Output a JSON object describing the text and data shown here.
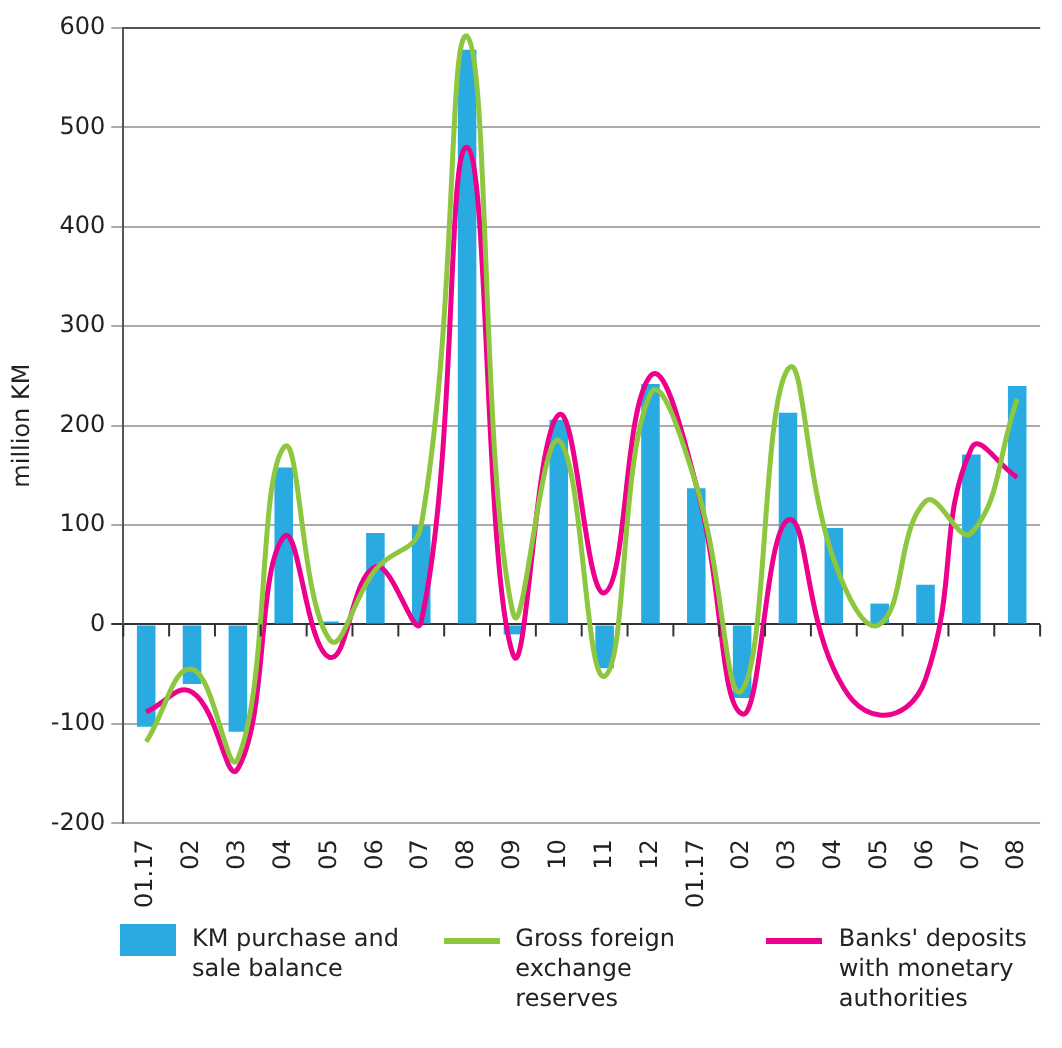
{
  "chart_data": {
    "type": "bar",
    "ylabel": "million KM",
    "categories": [
      "01.17",
      "02",
      "03",
      "04",
      "05",
      "06",
      "07",
      "08",
      "09",
      "10",
      "11",
      "12",
      "01.17",
      "02",
      "03",
      "04",
      "05",
      "06",
      "07",
      "08"
    ],
    "series": [
      {
        "name": "KM purchase and sale balance",
        "color": "#29abe2",
        "values": [
          -103,
          -60,
          -108,
          158,
          3,
          92,
          100,
          578,
          -10,
          206,
          -44,
          242,
          137,
          -74,
          213,
          97,
          21,
          40,
          171,
          240
        ]
      },
      {
        "name": "Gross foreign exchange reserves",
        "type": "line",
        "color": "#8dc63f",
        "values": [
          -118,
          -45,
          -135,
          178,
          -15,
          55,
          100,
          592,
          12,
          185,
          -52,
          232,
          140,
          -66,
          257,
          65,
          0,
          124,
          92,
          227
        ]
      },
      {
        "name": "Banks' deposits with monetary authorities",
        "type": "line",
        "color": "#ec008c",
        "values": [
          -88,
          -68,
          -145,
          88,
          -33,
          58,
          3,
          480,
          -30,
          211,
          32,
          250,
          140,
          -90,
          105,
          -45,
          -91,
          -55,
          177,
          148
        ]
      }
    ],
    "ylim": [
      -200,
      600
    ],
    "yticks": [
      -200,
      -100,
      0,
      100,
      200,
      300,
      400,
      500,
      600
    ],
    "grid": "y",
    "legend": "bottom",
    "marker": "none",
    "line_style": "solid"
  }
}
